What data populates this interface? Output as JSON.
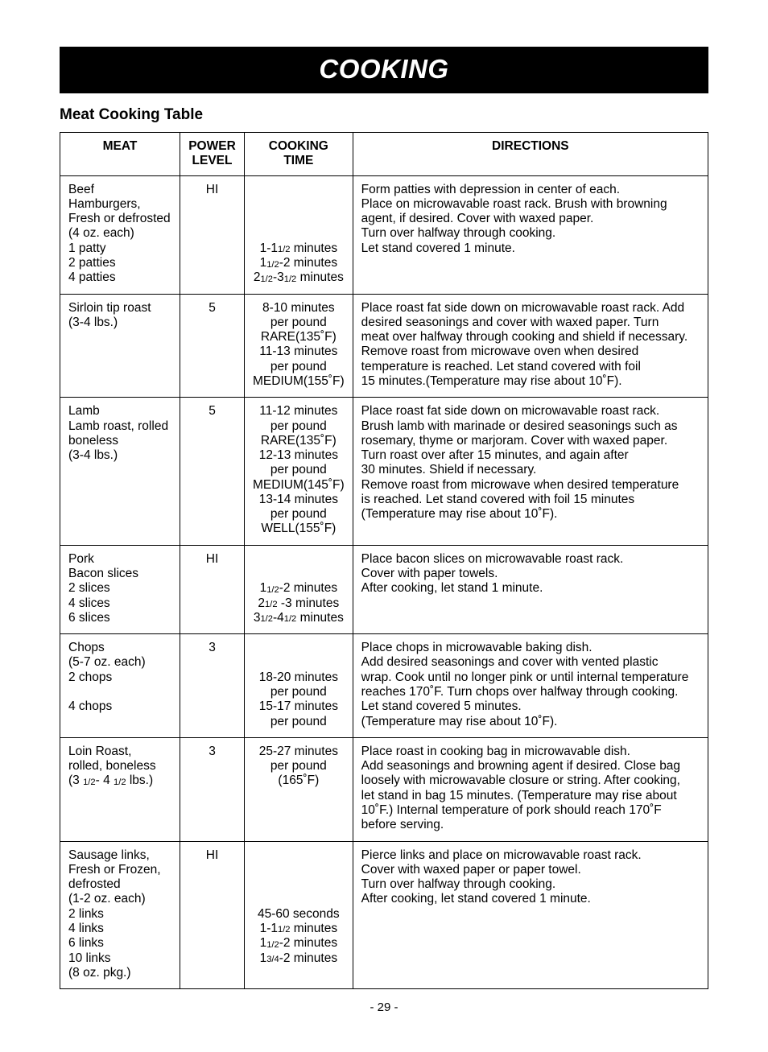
{
  "banner": "COOKING",
  "subtitle": "Meat Cooking Table",
  "headers": {
    "meat": "MEAT",
    "power_l1": "POWER",
    "power_l2": "LEVEL",
    "time_l1": "COOKING",
    "time_l2": "TIME",
    "directions": "DIRECTIONS"
  },
  "rows": [
    {
      "meat": [
        "Beef",
        "Hamburgers,",
        "Fresh or defrosted",
        "(4 oz. each)",
        "1 patty",
        "2 patties",
        "4 patties"
      ],
      "power": "HI",
      "time_pad": 4,
      "time": [
        "1-1<small>1/2</small> minutes",
        "1<small>1/2</small>-2 minutes",
        "2<small>1/2</small>-3<small>1/2</small> minutes"
      ],
      "dir": [
        "Form patties with depression in center of each.",
        "Place on microwavable roast rack. Brush with browning",
        "agent, if desired. Cover with waxed paper.",
        "Turn over halfway through cooking.",
        "Let stand covered 1 minute."
      ]
    },
    {
      "meat": [
        "Sirloin tip roast",
        "(3-4 lbs.)"
      ],
      "power": "5",
      "time_pad": 0,
      "time": [
        "8-10 minutes",
        "per pound",
        "RARE(135˚F)",
        "11-13 minutes",
        "per pound",
        "MEDIUM(155˚F)"
      ],
      "dir": [
        "Place roast fat side down on microwavable roast rack. Add",
        "desired seasonings and cover with waxed paper. Turn",
        "meat over halfway through cooking and shield if necessary.",
        "Remove roast from microwave oven when desired",
        "temperature is reached. Let stand covered with foil",
        "15 minutes.(Temperature may rise about 10˚F)."
      ]
    },
    {
      "meat": [
        "Lamb",
        "Lamb roast, rolled",
        "boneless",
        "(3-4 lbs.)"
      ],
      "power": "5",
      "time_pad": 0,
      "time": [
        "11-12 minutes",
        "per pound",
        "RARE(135˚F)",
        "12-13 minutes",
        "per pound",
        "MEDIUM(145˚F)",
        "13-14 minutes",
        "per pound",
        "WELL(155˚F)"
      ],
      "dir": [
        "Place roast fat side down on microwavable roast rack.",
        "Brush lamb with marinade or desired seasonings such as",
        "rosemary, thyme or marjoram. Cover with waxed paper.",
        "Turn roast over after 15 minutes, and again after",
        "30 minutes. Shield if necessary.",
        "Remove roast from microwave when desired temperature",
        "is reached. Let stand covered with foil 15 minutes",
        "(Temperature may rise about 10˚F)."
      ]
    },
    {
      "meat": [
        "Pork",
        "Bacon slices",
        "2 slices",
        "4 slices",
        "6 slices"
      ],
      "power": "HI",
      "time_pad": 2,
      "time": [
        "1<small>1/2</small>-2 minutes",
        "2<small>1/2</small> -3 minutes",
        "3<small>1/2</small>-4<small>1/2</small> minutes"
      ],
      "dir": [
        "Place bacon slices on microwavable roast rack.",
        "Cover with paper towels.",
        "After cooking, let stand 1 minute."
      ]
    },
    {
      "meat": [
        "Chops",
        "(5-7 oz. each)",
        "2 chops",
        "",
        "4 chops"
      ],
      "power": "3",
      "time_pad": 2,
      "time": [
        "18-20 minutes",
        "per pound",
        "15-17 minutes",
        "per pound"
      ],
      "dir": [
        "Place chops in microwavable baking dish.",
        "Add desired seasonings and cover with vented plastic",
        "wrap. Cook until no longer pink or until internal temperature",
        "reaches 170˚F. Turn chops over halfway through cooking.",
        "Let stand covered 5 minutes.",
        "(Temperature may rise about 10˚F)."
      ]
    },
    {
      "meat": [
        "Loin Roast,",
        "rolled, boneless",
        "(3 <small>1/2</small>- 4 <small>1/2</small> lbs.)"
      ],
      "power": "3",
      "time_pad": 0,
      "time": [
        "25-27 minutes",
        "per pound",
        "(165˚F)"
      ],
      "dir": [
        "Place roast in cooking bag in microwavable dish.",
        "Add seasonings and browning agent if desired. Close bag",
        "loosely with microwavable closure or string. After cooking,",
        "let stand in bag 15 minutes. (Temperature may rise about",
        "10˚F.) Internal temperature of pork should reach 170˚F",
        "before serving."
      ]
    },
    {
      "meat": [
        "Sausage links,",
        "Fresh or Frozen,",
        "defrosted",
        "(1-2 oz. each)",
        "2 links",
        "4 links",
        "6 links",
        "10 links",
        "(8 oz. pkg.)"
      ],
      "power": "HI",
      "time_pad": 4,
      "time": [
        "45-60 seconds",
        "1-1<small>1/2</small> minutes",
        "1<small>1/2</small>-2 minutes",
        "1<small>3/4</small>-2 minutes"
      ],
      "dir": [
        "Pierce links and place on microwavable roast rack.",
        "Cover with waxed paper or paper towel.",
        "Turn over halfway through cooking.",
        "After cooking, let stand covered 1 minute."
      ]
    }
  ],
  "page_number": "- 29 -"
}
